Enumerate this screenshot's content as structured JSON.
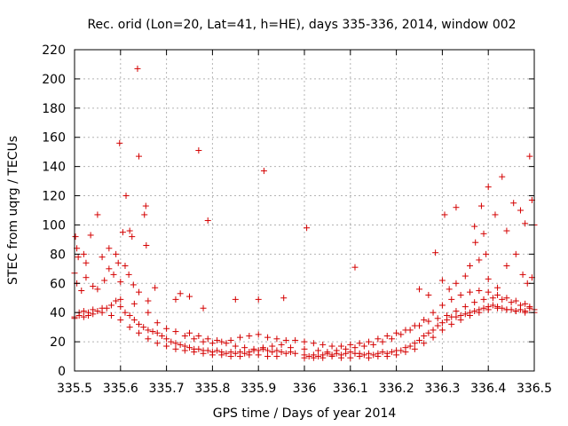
{
  "chart_data": {
    "type": "scatter",
    "title": "Rec. orid (Lon=20, Lat=41, h=HE), days 335-336, 2014, window 002",
    "xlabel": "GPS time / Days of year 2014",
    "ylabel": "STEC from uqrg / TECUs",
    "xlim": [
      335.5,
      336.5
    ],
    "ylim": [
      0,
      220
    ],
    "x_tick_labels": [
      "335.5",
      "335.6",
      "335.7",
      "335.8",
      "335.9",
      "336",
      "336.1",
      "336.2",
      "336.3",
      "336.4",
      "336.5"
    ],
    "y_tick_labels": [
      "0",
      "20",
      "40",
      "60",
      "80",
      "100",
      "120",
      "140",
      "160",
      "180",
      "200",
      "220"
    ],
    "grid": true,
    "marker": "+",
    "marker_color": "#d40000",
    "series": [
      {
        "points": [
          [
            335.502,
            92
          ],
          [
            335.505,
            84
          ],
          [
            335.508,
            78
          ],
          [
            335.52,
            80
          ],
          [
            335.525,
            74
          ],
          [
            335.535,
            93
          ],
          [
            335.55,
            107
          ],
          [
            335.56,
            78
          ],
          [
            335.575,
            84
          ],
          [
            335.59,
            80
          ],
          [
            335.595,
            74
          ],
          [
            335.598,
            156
          ],
          [
            335.612,
            120
          ],
          [
            335.605,
            95
          ],
          [
            335.62,
            96
          ],
          [
            335.625,
            92
          ],
          [
            335.637,
            207
          ],
          [
            335.64,
            147
          ],
          [
            335.655,
            113
          ],
          [
            335.652,
            107
          ],
          [
            335.656,
            86
          ],
          [
            335.77,
            151
          ],
          [
            335.79,
            103
          ],
          [
            335.85,
            49
          ],
          [
            335.9,
            49
          ],
          [
            335.912,
            137
          ],
          [
            335.955,
            50
          ],
          [
            336.005,
            98
          ],
          [
            336.11,
            71
          ],
          [
            336.285,
            81
          ],
          [
            336.305,
            107
          ],
          [
            336.33,
            112
          ],
          [
            336.37,
            99
          ],
          [
            336.385,
            113
          ],
          [
            336.39,
            94
          ],
          [
            336.395,
            80
          ],
          [
            336.4,
            126
          ],
          [
            336.415,
            107
          ],
          [
            336.43,
            133
          ],
          [
            336.44,
            96
          ],
          [
            336.455,
            115
          ],
          [
            336.47,
            110
          ],
          [
            336.48,
            101
          ],
          [
            336.49,
            147
          ],
          [
            336.495,
            117
          ],
          [
            336.5,
            100
          ],
          [
            335.5,
            67
          ],
          [
            335.505,
            60
          ],
          [
            335.515,
            55
          ],
          [
            335.525,
            64
          ],
          [
            335.54,
            58
          ],
          [
            335.55,
            56
          ],
          [
            335.565,
            62
          ],
          [
            335.575,
            70
          ],
          [
            335.585,
            66
          ],
          [
            335.6,
            61
          ],
          [
            335.61,
            72
          ],
          [
            335.618,
            66
          ],
          [
            335.628,
            59
          ],
          [
            335.64,
            54
          ],
          [
            335.66,
            48
          ],
          [
            335.675,
            57
          ],
          [
            335.72,
            49
          ],
          [
            335.73,
            53
          ],
          [
            335.75,
            51
          ],
          [
            335.78,
            43
          ],
          [
            336.25,
            56
          ],
          [
            336.27,
            52
          ],
          [
            336.3,
            62
          ],
          [
            336.315,
            56
          ],
          [
            336.33,
            60
          ],
          [
            336.35,
            65
          ],
          [
            336.36,
            72
          ],
          [
            336.372,
            88
          ],
          [
            336.38,
            76
          ],
          [
            336.4,
            63
          ],
          [
            336.42,
            57
          ],
          [
            336.44,
            72
          ],
          [
            336.46,
            80
          ],
          [
            336.475,
            66
          ],
          [
            336.485,
            60
          ],
          [
            336.495,
            64
          ],
          [
            335.5,
            37
          ],
          [
            335.51,
            40
          ],
          [
            335.52,
            41
          ],
          [
            335.53,
            40
          ],
          [
            335.54,
            42
          ],
          [
            335.55,
            41
          ],
          [
            335.56,
            43
          ],
          [
            335.57,
            43
          ],
          [
            335.58,
            45
          ],
          [
            335.59,
            48
          ],
          [
            335.6,
            44
          ],
          [
            335.61,
            40
          ],
          [
            335.62,
            38
          ],
          [
            335.63,
            35
          ],
          [
            335.64,
            32
          ],
          [
            335.65,
            30
          ],
          [
            335.66,
            28
          ],
          [
            335.67,
            27
          ],
          [
            335.68,
            26
          ],
          [
            335.69,
            24
          ],
          [
            335.7,
            22
          ],
          [
            335.71,
            20
          ],
          [
            335.72,
            19
          ],
          [
            335.73,
            18
          ],
          [
            335.74,
            17
          ],
          [
            335.75,
            16
          ],
          [
            335.76,
            15
          ],
          [
            335.77,
            15
          ],
          [
            335.78,
            14
          ],
          [
            335.79,
            14
          ],
          [
            335.8,
            13
          ],
          [
            335.81,
            14
          ],
          [
            335.82,
            13
          ],
          [
            335.83,
            12
          ],
          [
            335.84,
            13
          ],
          [
            335.85,
            12
          ],
          [
            335.86,
            13
          ],
          [
            335.87,
            12
          ],
          [
            335.88,
            13
          ],
          [
            335.89,
            14
          ],
          [
            335.9,
            14
          ],
          [
            335.91,
            15
          ],
          [
            335.92,
            14
          ],
          [
            335.93,
            13
          ],
          [
            335.94,
            14
          ],
          [
            335.95,
            13
          ],
          [
            335.96,
            12
          ],
          [
            335.97,
            13
          ],
          [
            335.98,
            12
          ],
          [
            336.0,
            11
          ],
          [
            336.01,
            10
          ],
          [
            336.02,
            11
          ],
          [
            336.03,
            10
          ],
          [
            336.04,
            11
          ],
          [
            336.05,
            12
          ],
          [
            336.06,
            11
          ],
          [
            336.07,
            12
          ],
          [
            336.08,
            11
          ],
          [
            336.09,
            12
          ],
          [
            336.1,
            13
          ],
          [
            336.11,
            12
          ],
          [
            336.12,
            12
          ],
          [
            336.13,
            11
          ],
          [
            336.14,
            12
          ],
          [
            336.15,
            11
          ],
          [
            336.16,
            12
          ],
          [
            336.17,
            13
          ],
          [
            336.18,
            12
          ],
          [
            336.19,
            13
          ],
          [
            336.2,
            14
          ],
          [
            336.21,
            14
          ],
          [
            336.22,
            16
          ],
          [
            336.23,
            17
          ],
          [
            336.24,
            19
          ],
          [
            336.25,
            21
          ],
          [
            336.26,
            24
          ],
          [
            336.27,
            26
          ],
          [
            336.28,
            28
          ],
          [
            336.29,
            31
          ],
          [
            336.3,
            33
          ],
          [
            336.31,
            35
          ],
          [
            336.32,
            37
          ],
          [
            336.33,
            37
          ],
          [
            336.34,
            38
          ],
          [
            336.35,
            39
          ],
          [
            336.36,
            40
          ],
          [
            336.37,
            41
          ],
          [
            336.38,
            42
          ],
          [
            336.39,
            43
          ],
          [
            336.4,
            44
          ],
          [
            336.41,
            45
          ],
          [
            336.42,
            44
          ],
          [
            336.43,
            43
          ],
          [
            336.44,
            42
          ],
          [
            336.45,
            42
          ],
          [
            336.46,
            41
          ],
          [
            336.47,
            42
          ],
          [
            336.48,
            41
          ],
          [
            336.49,
            43
          ],
          [
            336.5,
            42
          ],
          [
            335.5,
            36
          ],
          [
            335.51,
            38
          ],
          [
            335.52,
            37
          ],
          [
            335.53,
            38
          ],
          [
            335.54,
            39
          ],
          [
            335.56,
            40
          ],
          [
            335.58,
            38
          ],
          [
            335.6,
            35
          ],
          [
            335.62,
            30
          ],
          [
            335.64,
            26
          ],
          [
            335.66,
            22
          ],
          [
            335.68,
            19
          ],
          [
            335.7,
            17
          ],
          [
            335.72,
            15
          ],
          [
            335.74,
            14
          ],
          [
            335.76,
            13
          ],
          [
            335.78,
            12
          ],
          [
            335.8,
            11
          ],
          [
            335.82,
            11
          ],
          [
            335.84,
            10
          ],
          [
            335.86,
            10
          ],
          [
            335.88,
            11
          ],
          [
            335.9,
            11
          ],
          [
            335.92,
            10
          ],
          [
            335.94,
            10
          ],
          [
            336.0,
            9
          ],
          [
            336.02,
            9
          ],
          [
            336.04,
            9
          ],
          [
            336.06,
            10
          ],
          [
            336.08,
            9
          ],
          [
            336.1,
            9
          ],
          [
            336.12,
            10
          ],
          [
            336.14,
            9
          ],
          [
            336.16,
            10
          ],
          [
            336.18,
            10
          ],
          [
            336.2,
            11
          ],
          [
            336.22,
            13
          ],
          [
            336.24,
            15
          ],
          [
            336.26,
            19
          ],
          [
            336.28,
            23
          ],
          [
            336.3,
            28
          ],
          [
            336.32,
            32
          ],
          [
            336.34,
            35
          ],
          [
            336.36,
            38
          ],
          [
            336.38,
            40
          ],
          [
            336.4,
            42
          ],
          [
            336.42,
            43
          ],
          [
            336.44,
            42
          ],
          [
            336.46,
            41
          ],
          [
            336.48,
            40
          ],
          [
            336.5,
            40
          ],
          [
            335.6,
            49
          ],
          [
            335.63,
            46
          ],
          [
            335.66,
            40
          ],
          [
            335.68,
            33
          ],
          [
            335.7,
            29
          ],
          [
            335.72,
            27
          ],
          [
            335.74,
            24
          ],
          [
            335.76,
            22
          ],
          [
            335.78,
            20
          ],
          [
            335.8,
            19
          ],
          [
            335.82,
            20
          ],
          [
            335.84,
            21
          ],
          [
            335.86,
            23
          ],
          [
            335.88,
            24
          ],
          [
            335.9,
            25
          ],
          [
            335.92,
            23
          ],
          [
            335.94,
            22
          ],
          [
            335.96,
            21
          ],
          [
            335.98,
            21
          ],
          [
            336.0,
            20
          ],
          [
            336.02,
            19
          ],
          [
            336.04,
            18
          ],
          [
            336.06,
            17
          ],
          [
            336.08,
            17
          ],
          [
            336.1,
            18
          ],
          [
            336.12,
            19
          ],
          [
            336.14,
            20
          ],
          [
            336.16,
            22
          ],
          [
            336.18,
            24
          ],
          [
            336.2,
            26
          ],
          [
            336.22,
            28
          ],
          [
            336.24,
            31
          ],
          [
            336.26,
            35
          ],
          [
            336.28,
            40
          ],
          [
            336.3,
            45
          ],
          [
            336.32,
            49
          ],
          [
            336.34,
            52
          ],
          [
            336.36,
            54
          ],
          [
            336.38,
            55
          ],
          [
            336.4,
            54
          ],
          [
            336.42,
            52
          ],
          [
            336.44,
            50
          ],
          [
            336.46,
            48
          ],
          [
            336.48,
            46
          ],
          [
            335.75,
            26
          ],
          [
            335.77,
            24
          ],
          [
            335.79,
            22
          ],
          [
            335.81,
            21
          ],
          [
            335.83,
            19
          ],
          [
            335.85,
            17
          ],
          [
            335.87,
            16
          ],
          [
            335.89,
            15
          ],
          [
            335.91,
            16
          ],
          [
            335.93,
            17
          ],
          [
            335.95,
            18
          ],
          [
            335.97,
            16
          ],
          [
            336.0,
            15
          ],
          [
            336.03,
            14
          ],
          [
            336.05,
            13
          ],
          [
            336.07,
            14
          ],
          [
            336.09,
            15
          ],
          [
            336.11,
            16
          ],
          [
            336.13,
            17
          ],
          [
            336.15,
            18
          ],
          [
            336.17,
            20
          ],
          [
            336.19,
            22
          ],
          [
            336.21,
            25
          ],
          [
            336.23,
            28
          ],
          [
            336.25,
            31
          ],
          [
            336.27,
            34
          ],
          [
            336.29,
            36
          ],
          [
            336.31,
            38
          ],
          [
            336.33,
            41
          ],
          [
            336.35,
            44
          ],
          [
            336.37,
            47
          ],
          [
            336.39,
            49
          ],
          [
            336.41,
            50
          ],
          [
            336.43,
            49
          ],
          [
            336.45,
            47
          ],
          [
            336.47,
            45
          ],
          [
            336.49,
            44
          ]
        ]
      }
    ]
  }
}
